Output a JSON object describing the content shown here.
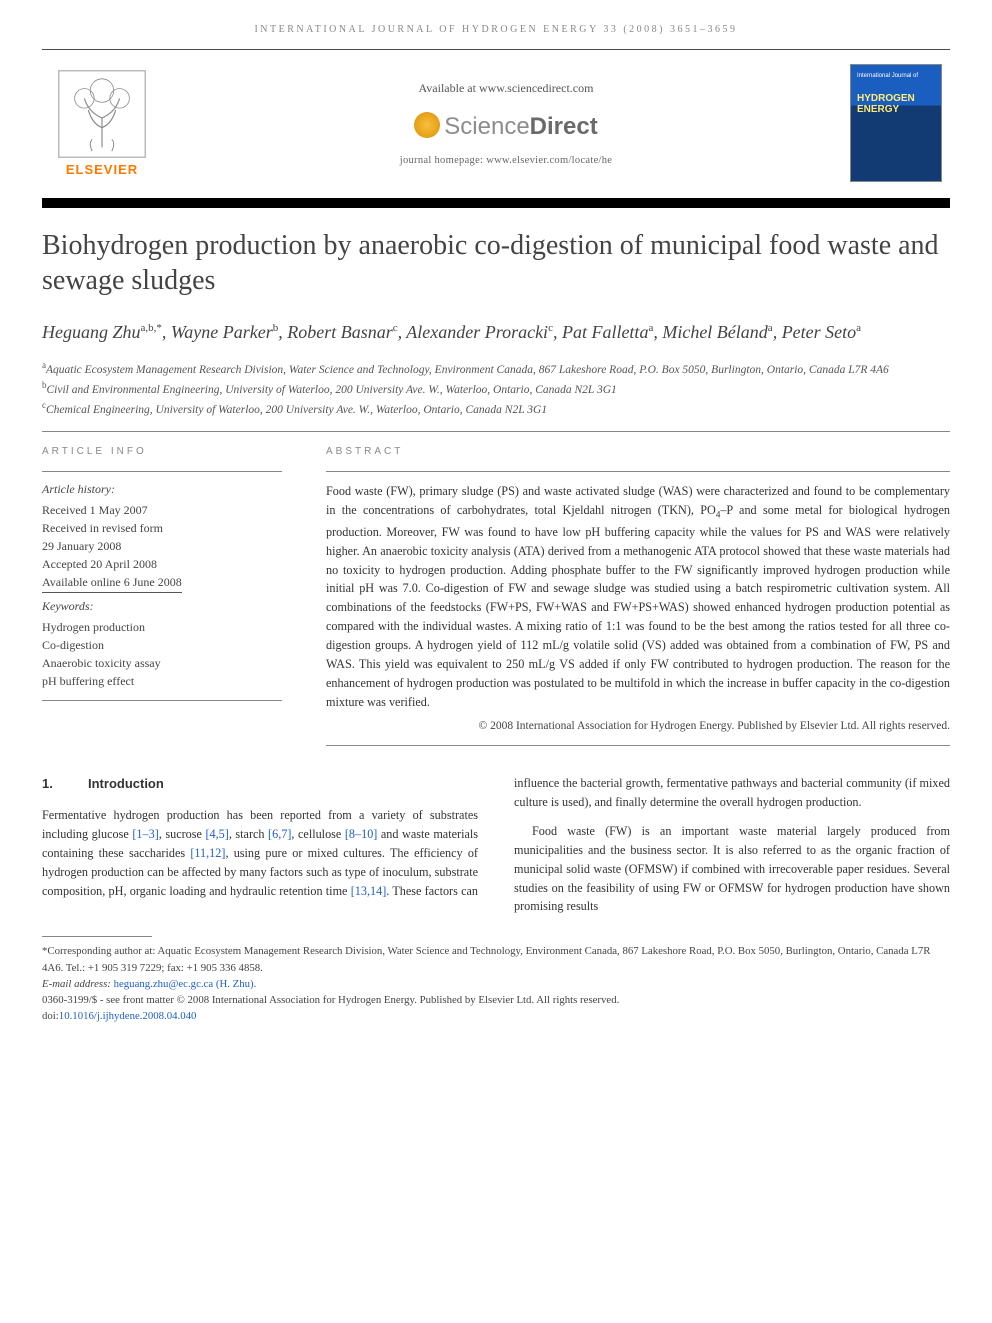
{
  "running_head": "INTERNATIONAL JOURNAL OF HYDROGEN ENERGY 33 (2008) 3651–3659",
  "mast": {
    "elsevier_word": "ELSEVIER",
    "available_at": "Available at www.sciencedirect.com",
    "sd_sci": "Science",
    "sd_dir": "Direct",
    "homepage": "journal homepage: www.elsevier.com/locate/he",
    "cover_small": "International Journal of",
    "cover_big1": "HYDROGEN",
    "cover_big2": "ENERGY"
  },
  "title": "Biohydrogen production by anaerobic co-digestion of municipal food waste and sewage sludges",
  "authors_html": "Heguang Zhu<sup>a,b,*</sup>, Wayne Parker<sup>b</sup>, Robert Basnar<sup>c</sup>, Alexander Proracki<sup>c</sup>, Pat Falletta<sup>a</sup>, Michel Béland<sup>a</sup>, Peter Seto<sup>a</sup>",
  "affiliations": {
    "a": "Aquatic Ecosystem Management Research Division, Water Science and Technology, Environment Canada, 867 Lakeshore Road, P.O. Box 5050, Burlington, Ontario, Canada L7R 4A6",
    "b": "Civil and Environmental Engineering, University of Waterloo, 200 University Ave. W., Waterloo, Ontario, Canada N2L 3G1",
    "c": "Chemical Engineering, University of Waterloo, 200 University Ave. W., Waterloo, Ontario, Canada N2L 3G1"
  },
  "info_heads": {
    "left": "ARTICLE INFO",
    "right": "ABSTRACT"
  },
  "history": {
    "label": "Article history:",
    "received": "Received 1 May 2007",
    "revised1": "Received in revised form",
    "revised2": "29 January 2008",
    "accepted": "Accepted 20 April 2008",
    "online": "Available online 6 June 2008"
  },
  "keywords": {
    "label": "Keywords:",
    "items": [
      "Hydrogen production",
      "Co-digestion",
      "Anaerobic toxicity assay",
      "pH buffering effect"
    ]
  },
  "abstract": "Food waste (FW), primary sludge (PS) and waste activated sludge (WAS) were characterized and found to be complementary in the concentrations of carbohydrates, total Kjeldahl nitrogen (TKN), PO4–P and some metal for biological hydrogen production. Moreover, FW was found to have low pH buffering capacity while the values for PS and WAS were relatively higher. An anaerobic toxicity analysis (ATA) derived from a methanogenic ATA protocol showed that these waste materials had no toxicity to hydrogen production. Adding phosphate buffer to the FW significantly improved hydrogen production while initial pH was 7.0. Co-digestion of FW and sewage sludge was studied using a batch respirometric cultivation system. All combinations of the feedstocks (FW+PS, FW+WAS and FW+PS+WAS) showed enhanced hydrogen production potential as compared with the individual wastes. A mixing ratio of 1:1 was found to be the best among the ratios tested for all three co-digestion groups. A hydrogen yield of 112 mL/g volatile solid (VS) added was obtained from a combination of FW, PS and WAS. This yield was equivalent to 250 mL/g VS added if only FW contributed to hydrogen production. The reason for the enhancement of hydrogen production was postulated to be multifold in which the increase in buffer capacity in the co-digestion mixture was verified.",
  "copyright": "© 2008 International Association for Hydrogen Energy. Published by Elsevier Ltd. All rights reserved.",
  "section1": {
    "num": "1.",
    "title": "Introduction"
  },
  "body": {
    "p1a": "Fermentative hydrogen production has been reported from a variety of substrates including glucose ",
    "p1_ref1": "[1–3]",
    "p1b": ", sucrose ",
    "p1_ref2": "[4,5]",
    "p1c": ", starch ",
    "p1_ref3": "[6,7]",
    "p1d": ", cellulose ",
    "p1_ref4": "[8–10]",
    "p1e": " and waste materials containing these saccharides ",
    "p1_ref5": "[11,12]",
    "p1f": ", using pure or mixed cultures. The efficiency of hydrogen production can be affected by many factors such as type of inoculum, substrate composition, pH, organic loading and hydraulic retention time ",
    "p1_ref6": "[13,14]",
    "p1g": ". These factors can influence the bacterial growth, fermentative pathways and bacterial community (if mixed culture is used), and finally determine the overall hydrogen production.",
    "p2": "Food waste (FW) is an important waste material largely produced from municipalities and the business sector. It is also referred to as the organic fraction of municipal solid waste (OFMSW) if combined with irrecoverable paper residues. Several studies on the feasibility of using FW or OFMSW for hydrogen production have shown promising results"
  },
  "footnotes": {
    "corr": "*Corresponding author at: Aquatic Ecosystem Management Research Division, Water Science and Technology, Environment Canada, 867 Lakeshore Road, P.O. Box 5050, Burlington, Ontario, Canada L7R 4A6. Tel.: +1 905 319 7229; fax: +1 905 336 4858.",
    "email_label": "E-mail address: ",
    "email": "heguang.zhu@ec.gc.ca (H. Zhu).",
    "front": "0360-3199/$ - see front matter © 2008 International Association for Hydrogen Energy. Published by Elsevier Ltd. All rights reserved.",
    "doi_label": "doi:",
    "doi": "10.1016/j.ijhydene.2008.04.040"
  },
  "colors": {
    "link": "#2060c8",
    "elsevier_orange": "#ff7a00",
    "cover_top": "#1a5fbf",
    "cover_bottom": "#123a73"
  }
}
